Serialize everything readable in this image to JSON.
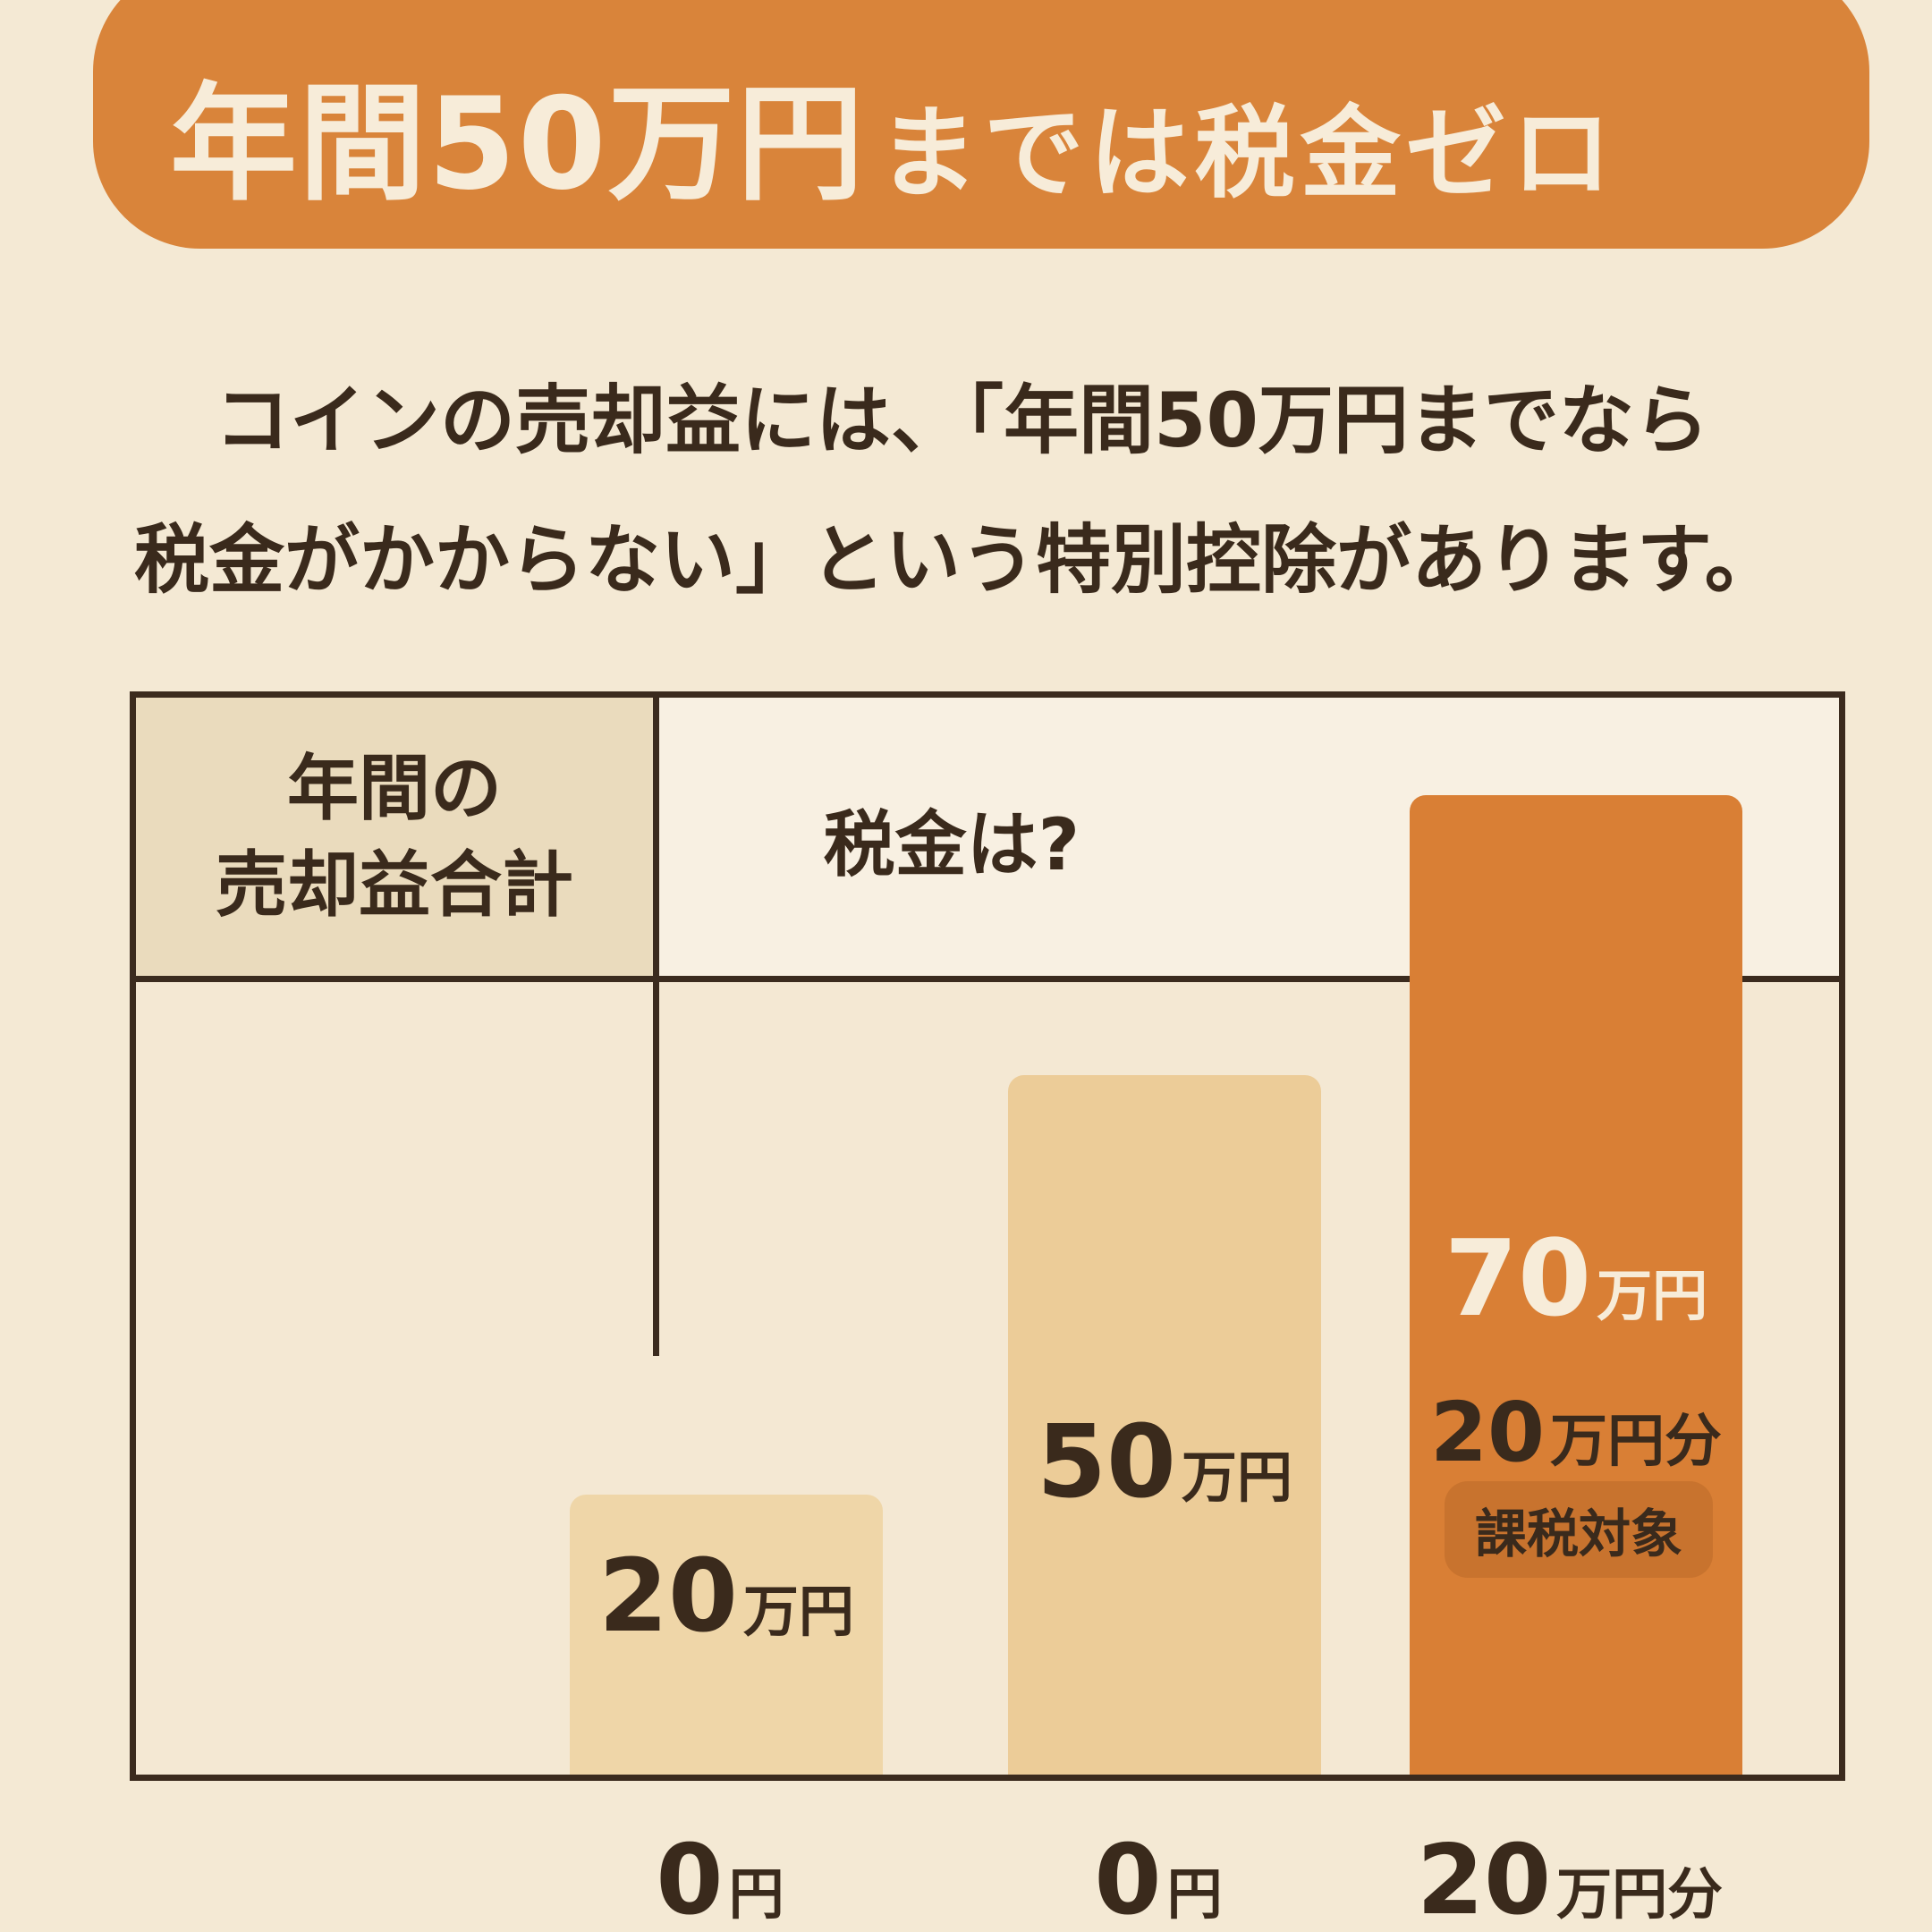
{
  "header": {
    "title_main": "年間50万円",
    "title_rest": "までは税金ゼロ"
  },
  "intro": {
    "line1": "コインの売却益には、「年間50万円までなら",
    "line2": "税金がかからない」という特別控除があります。"
  },
  "table": {
    "col1_line1": "年間の",
    "col1_line2": "売却益合計",
    "col2_label": "税金は?"
  },
  "chart_data": {
    "type": "bar",
    "title": "年間50万円までは税金ゼロ",
    "xlabel": "年間の売却益合計",
    "ylabel": "",
    "ylim": [
      0,
      80
    ],
    "categories": [
      "20万円",
      "50万円",
      "70万円"
    ],
    "values": [
      20,
      50,
      70
    ],
    "value_unit": "万円",
    "tax": [
      {
        "num": "0",
        "unit": "円"
      },
      {
        "num": "0",
        "unit": "円"
      },
      {
        "num": "20",
        "unit": "万円分"
      }
    ],
    "bar_labels": [
      {
        "num": "20",
        "unit": "万円"
      },
      {
        "num": "50",
        "unit": "万円"
      },
      {
        "num": "70",
        "unit": "万円"
      }
    ],
    "taxable_portion": {
      "num": "20",
      "unit": "万円分",
      "badge": "課税対象"
    },
    "colors": {
      "bar1": "#efd6a8",
      "bar2": "#eccc98",
      "bar3": "#d97f35",
      "accent": "#d9843a",
      "badge": "#c8732e"
    }
  }
}
